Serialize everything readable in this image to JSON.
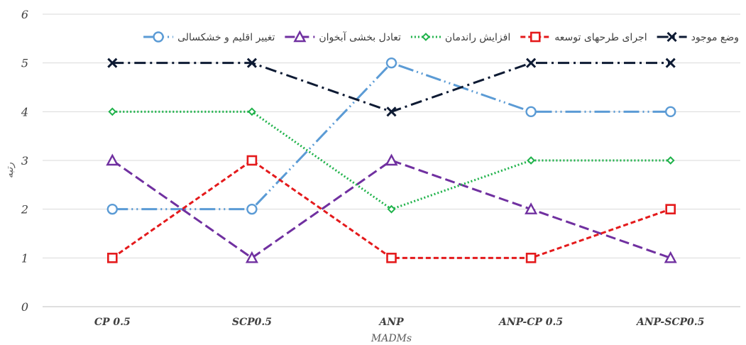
{
  "chart_data": {
    "type": "line",
    "categories": [
      "CP 0.5",
      "SCP0.5",
      "ANP",
      "ANP-CP 0.5",
      "ANP-SCP0.5"
    ],
    "xlabel": "MADMs",
    "ylabel": "رتبه",
    "ylim": [
      0,
      6
    ],
    "yticks": [
      0,
      1,
      2,
      3,
      4,
      5,
      6
    ],
    "grid": true,
    "legend_position": "top",
    "series": [
      {
        "name": "وضع موجود",
        "values": [
          5,
          5,
          4,
          5,
          5
        ],
        "color": "#0d1a33",
        "marker": "x",
        "dash": "16 6 3 6"
      },
      {
        "name": "اجرای طرحهای توسعه",
        "values": [
          1,
          3,
          1,
          1,
          2
        ],
        "color": "#e41a1c",
        "marker": "square",
        "dash": "7 4"
      },
      {
        "name": "افزایش راندمان",
        "values": [
          4,
          4,
          2,
          3,
          3
        ],
        "color": "#1fb24a",
        "marker": "diamond",
        "dash": "2 3"
      },
      {
        "name": "تعادل بخشی آبخوان",
        "values": [
          3,
          1,
          3,
          2,
          1
        ],
        "color": "#7030a0",
        "marker": "triangle",
        "dash": "14 6"
      },
      {
        "name": "تغییر اقلیم و خشکسالی",
        "values": [
          2,
          2,
          5,
          4,
          4
        ],
        "color": "#5b9bd5",
        "marker": "circle",
        "dash": "22 5 2 5 2 5"
      }
    ]
  }
}
